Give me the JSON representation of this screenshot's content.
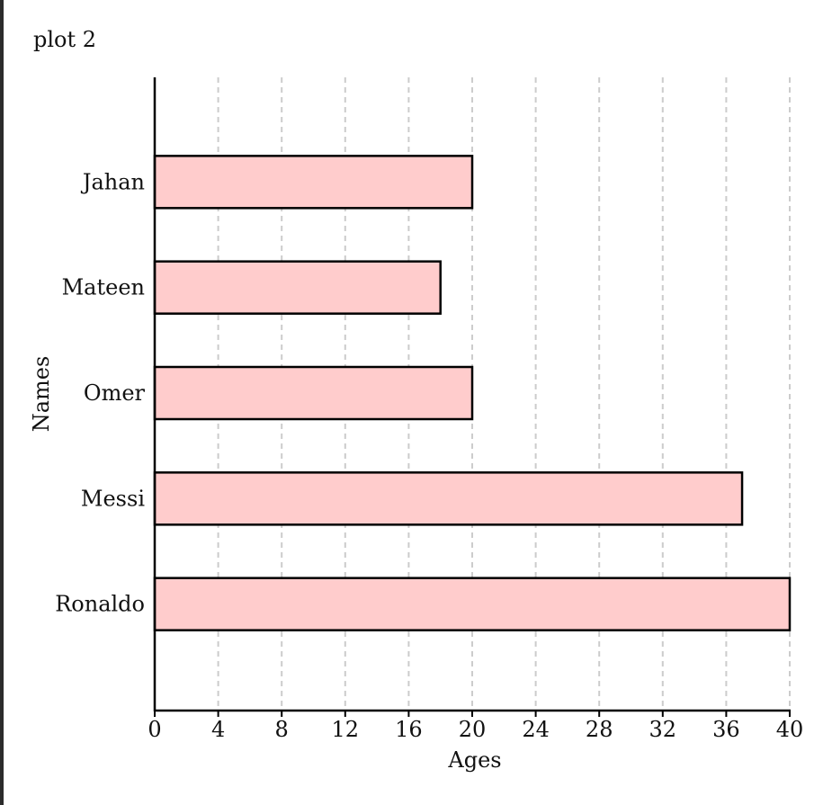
{
  "chart_data": {
    "type": "bar",
    "orientation": "horizontal",
    "title": "plot 2",
    "xlabel": "Ages",
    "ylabel": "Names",
    "categories": [
      "Jahan",
      "Mateen",
      "Omer",
      "Messi",
      "Ronaldo"
    ],
    "values": [
      20,
      18,
      20,
      37,
      40
    ],
    "xlim": [
      0,
      40
    ],
    "xticks": [
      0,
      4,
      8,
      12,
      16,
      20,
      24,
      28,
      32,
      36,
      40
    ],
    "grid": "vertical dashed",
    "colors": {
      "bar_fill": "#ffcccc",
      "bar_stroke": "#000000",
      "grid": "#cccccc",
      "axis": "#000000"
    }
  }
}
